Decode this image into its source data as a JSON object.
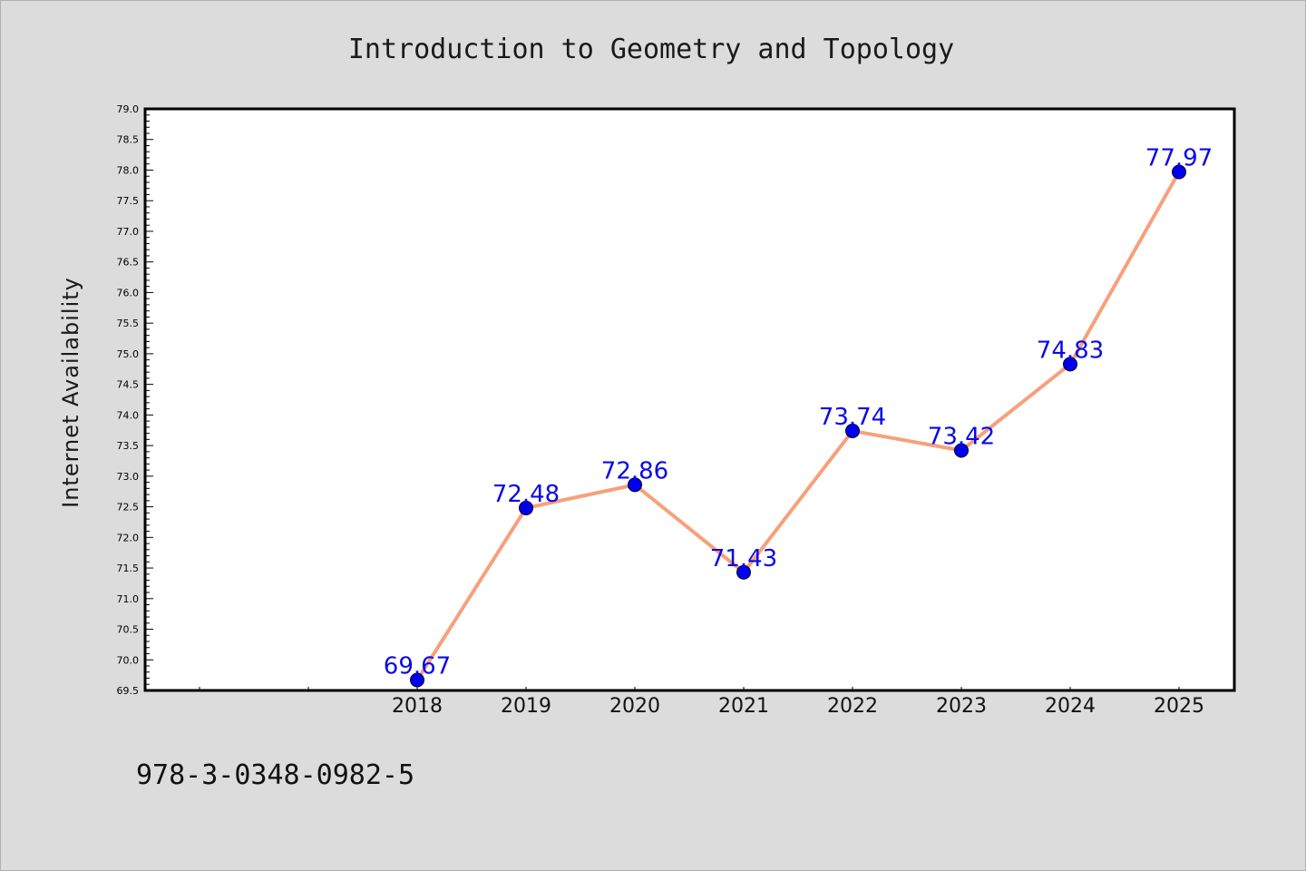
{
  "footer_text": "978-3-0348-0982-5",
  "colors": {
    "background": "#dcdcdc",
    "line": "#f7a07c",
    "marker": "#0000ee",
    "data_label": "#0a0ae6"
  },
  "chart_data": {
    "type": "line",
    "title": "Introduction to Geometry and Topology",
    "xlabel": "",
    "ylabel": "Internet Availability",
    "categories": [
      "2018",
      "2019",
      "2020",
      "2021",
      "2022",
      "2023",
      "2024",
      "2025"
    ],
    "values": [
      69.67,
      72.48,
      72.86,
      71.43,
      73.74,
      73.42,
      74.83,
      77.97
    ],
    "data_labels": [
      "69.67",
      "72.48",
      "72.86",
      "71.43",
      "73.74",
      "73.42",
      "74.83",
      "77.97"
    ],
    "ylim": [
      69.5,
      79.0
    ],
    "yticks": [
      69.5,
      70.0,
      70.5,
      71.0,
      71.5,
      72.0,
      72.5,
      73.0,
      73.5,
      74.0,
      74.5,
      75.0,
      75.5,
      76.0,
      76.5,
      77.0,
      77.5,
      78.0,
      78.5,
      79.0
    ],
    "ytick_labels": [
      "69.5",
      "70.0",
      "70.5",
      "71.0",
      "71.5",
      "72.0",
      "72.5",
      "73.0",
      "73.5",
      "74.0",
      "74.5",
      "75.0",
      "75.5",
      "76.0",
      "76.5",
      "77.0",
      "77.5",
      "78.0",
      "78.5",
      "79.0"
    ],
    "grid": false,
    "legend": "none"
  }
}
